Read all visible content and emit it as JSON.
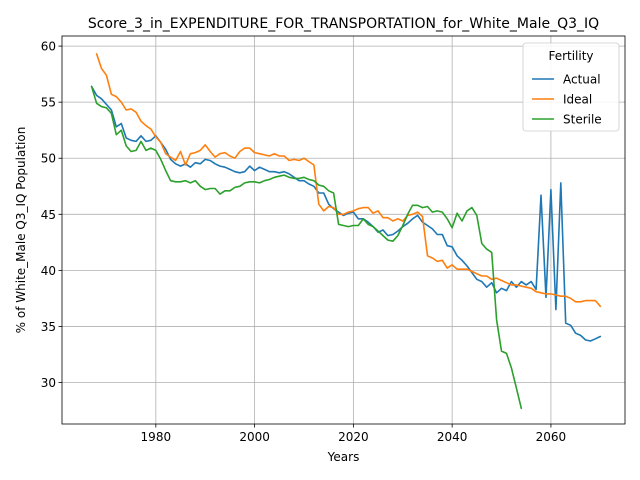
{
  "chart_data": {
    "type": "line",
    "title": "Score_3_in_EXPENDITURE_FOR_TRANSPORTATION_for_White_Male_Q3_IQ",
    "xlabel": "Years",
    "ylabel": "% of White_Male Q3_IQ Population",
    "xlim": [
      1961,
      2075
    ],
    "ylim": [
      26.3,
      60.9
    ],
    "xticks": [
      1980,
      2000,
      2020,
      2040,
      2060
    ],
    "yticks": [
      30,
      35,
      40,
      45,
      50,
      55,
      60
    ],
    "grid": true,
    "legend": {
      "title": "Fertility",
      "placement": "top-right"
    },
    "series": [
      {
        "name": "Actual",
        "color": "#1f77b4",
        "x": [
          1967,
          1968,
          1969,
          1970,
          1971,
          1972,
          1973,
          1974,
          1975,
          1976,
          1977,
          1978,
          1979,
          1980,
          1981,
          1982,
          1983,
          1984,
          1985,
          1986,
          1987,
          1988,
          1989,
          1990,
          1991,
          1992,
          1993,
          1994,
          1995,
          1996,
          1997,
          1998,
          1999,
          2000,
          2001,
          2002,
          2003,
          2004,
          2005,
          2006,
          2007,
          2008,
          2009,
          2010,
          2011,
          2012,
          2013,
          2014,
          2015,
          2016,
          2017,
          2018,
          2019,
          2020,
          2021,
          2022,
          2023,
          2024,
          2025,
          2026,
          2027,
          2028,
          2029,
          2030,
          2031,
          2032,
          2033,
          2034,
          2035,
          2036,
          2037,
          2038,
          2039,
          2040,
          2041,
          2042,
          2043,
          2044,
          2045,
          2046,
          2047,
          2048,
          2049,
          2050,
          2051,
          2052,
          2053,
          2054,
          2055,
          2056,
          2057,
          2058,
          2059,
          2060,
          2061,
          2062,
          2063,
          2064,
          2065,
          2066,
          2067,
          2068,
          2069,
          2070
        ],
        "values": [
          56.4,
          55.6,
          55.3,
          54.8,
          54.3,
          52.8,
          53.1,
          51.8,
          51.6,
          51.5,
          52.0,
          51.5,
          51.6,
          52.0,
          51.4,
          50.8,
          49.9,
          49.5,
          49.3,
          49.5,
          49.2,
          49.6,
          49.5,
          49.9,
          49.8,
          49.5,
          49.3,
          49.2,
          49.0,
          48.8,
          48.7,
          48.8,
          49.3,
          48.9,
          49.2,
          49.0,
          48.8,
          48.8,
          48.7,
          48.8,
          48.6,
          48.3,
          48.0,
          48.0,
          47.7,
          47.5,
          46.9,
          46.9,
          45.9,
          45.5,
          45.2,
          44.9,
          45.1,
          45.2,
          44.6,
          44.6,
          44.3,
          43.9,
          43.4,
          43.6,
          43.1,
          43.2,
          43.5,
          43.9,
          44.2,
          44.6,
          44.9,
          44.3,
          44.0,
          43.7,
          43.2,
          43.2,
          42.2,
          42.1,
          41.3,
          40.9,
          40.4,
          39.8,
          39.2,
          39.0,
          38.5,
          38.9,
          38.0,
          38.4,
          38.2,
          39.0,
          38.5,
          39.0,
          38.7,
          39.0,
          38.3,
          46.7,
          37.6,
          47.2,
          36.5,
          47.8,
          35.3,
          35.1,
          34.4,
          34.2,
          33.8,
          33.7,
          33.9,
          34.1
        ]
      },
      {
        "name": "Ideal",
        "color": "#ff7f0e",
        "x": [
          1968,
          1969,
          1970,
          1971,
          1972,
          1973,
          1974,
          1975,
          1976,
          1977,
          1978,
          1979,
          1980,
          1981,
          1982,
          1983,
          1984,
          1985,
          1986,
          1987,
          1988,
          1989,
          1990,
          1991,
          1992,
          1993,
          1994,
          1995,
          1996,
          1997,
          1998,
          1999,
          2000,
          2001,
          2002,
          2003,
          2004,
          2005,
          2006,
          2007,
          2008,
          2009,
          2010,
          2011,
          2012,
          2013,
          2014,
          2015,
          2016,
          2017,
          2018,
          2019,
          2020,
          2021,
          2022,
          2023,
          2024,
          2025,
          2026,
          2027,
          2028,
          2029,
          2030,
          2031,
          2032,
          2033,
          2034,
          2035,
          2036,
          2037,
          2038,
          2039,
          2040,
          2041,
          2042,
          2043,
          2044,
          2045,
          2046,
          2047,
          2048,
          2049,
          2050,
          2051,
          2052,
          2053,
          2054,
          2055,
          2056,
          2057,
          2058,
          2059,
          2060,
          2061,
          2062,
          2063,
          2064,
          2065,
          2066,
          2067,
          2068,
          2069,
          2070
        ],
        "values": [
          59.3,
          58.0,
          57.4,
          55.7,
          55.5,
          55.0,
          54.3,
          54.4,
          54.1,
          53.3,
          52.9,
          52.6,
          51.9,
          51.4,
          50.4,
          50.1,
          49.8,
          50.6,
          49.4,
          50.4,
          50.5,
          50.7,
          51.2,
          50.6,
          50.1,
          50.4,
          50.5,
          50.2,
          50.0,
          50.6,
          50.9,
          50.9,
          50.5,
          50.4,
          50.3,
          50.2,
          50.4,
          50.2,
          50.2,
          49.8,
          49.9,
          49.8,
          50.0,
          49.7,
          49.4,
          45.9,
          45.3,
          45.7,
          45.6,
          45.0,
          45.0,
          45.2,
          45.3,
          45.5,
          45.6,
          45.6,
          45.1,
          45.3,
          44.7,
          44.7,
          44.4,
          44.6,
          44.4,
          44.9,
          45.0,
          45.2,
          44.8,
          41.3,
          41.1,
          40.8,
          40.9,
          40.2,
          40.5,
          40.1,
          40.1,
          40.1,
          39.9,
          39.7,
          39.5,
          39.5,
          39.2,
          39.3,
          39.1,
          38.9,
          38.7,
          38.7,
          38.6,
          38.5,
          38.4,
          38.1,
          38.0,
          37.9,
          37.9,
          37.8,
          37.7,
          37.7,
          37.5,
          37.2,
          37.2,
          37.3,
          37.3,
          37.3,
          36.8
        ]
      },
      {
        "name": "Sterile",
        "color": "#2ca02c",
        "x": [
          1967,
          1968,
          1969,
          1970,
          1971,
          1972,
          1973,
          1974,
          1975,
          1976,
          1977,
          1978,
          1979,
          1980,
          1981,
          1982,
          1983,
          1984,
          1985,
          1986,
          1987,
          1988,
          1989,
          1990,
          1991,
          1992,
          1993,
          1994,
          1995,
          1996,
          1997,
          1998,
          1999,
          2000,
          2001,
          2002,
          2003,
          2004,
          2005,
          2006,
          2007,
          2008,
          2009,
          2010,
          2011,
          2012,
          2013,
          2014,
          2015,
          2016,
          2017,
          2018,
          2019,
          2020,
          2021,
          2022,
          2023,
          2024,
          2025,
          2026,
          2027,
          2028,
          2029,
          2030,
          2031,
          2032,
          2033,
          2034,
          2035,
          2036,
          2037,
          2038,
          2039,
          2040,
          2041,
          2042,
          2043,
          2044,
          2045,
          2046,
          2047,
          2048,
          2049,
          2050,
          2051,
          2052,
          2053,
          2054
        ],
        "values": [
          56.4,
          54.9,
          54.6,
          54.5,
          54.0,
          52.1,
          52.5,
          51.1,
          50.6,
          50.7,
          51.5,
          50.7,
          50.9,
          50.7,
          49.9,
          48.9,
          48.0,
          47.9,
          47.9,
          48.0,
          47.8,
          48.0,
          47.5,
          47.2,
          47.3,
          47.3,
          46.8,
          47.1,
          47.1,
          47.4,
          47.5,
          47.8,
          47.9,
          47.9,
          47.8,
          48.0,
          48.1,
          48.3,
          48.4,
          48.5,
          48.3,
          48.2,
          48.2,
          48.3,
          48.1,
          48.0,
          47.6,
          47.5,
          47.1,
          46.9,
          44.1,
          44.0,
          43.9,
          44.0,
          44.0,
          44.6,
          44.1,
          43.9,
          43.5,
          43.1,
          42.7,
          42.6,
          43.1,
          44.0,
          45.0,
          45.8,
          45.8,
          45.6,
          45.7,
          45.2,
          45.3,
          45.2,
          44.6,
          43.8,
          45.1,
          44.4,
          45.3,
          45.6,
          44.9,
          42.4,
          41.9,
          41.6,
          35.6,
          32.8,
          32.6,
          31.3,
          29.5,
          27.7
        ]
      }
    ]
  }
}
